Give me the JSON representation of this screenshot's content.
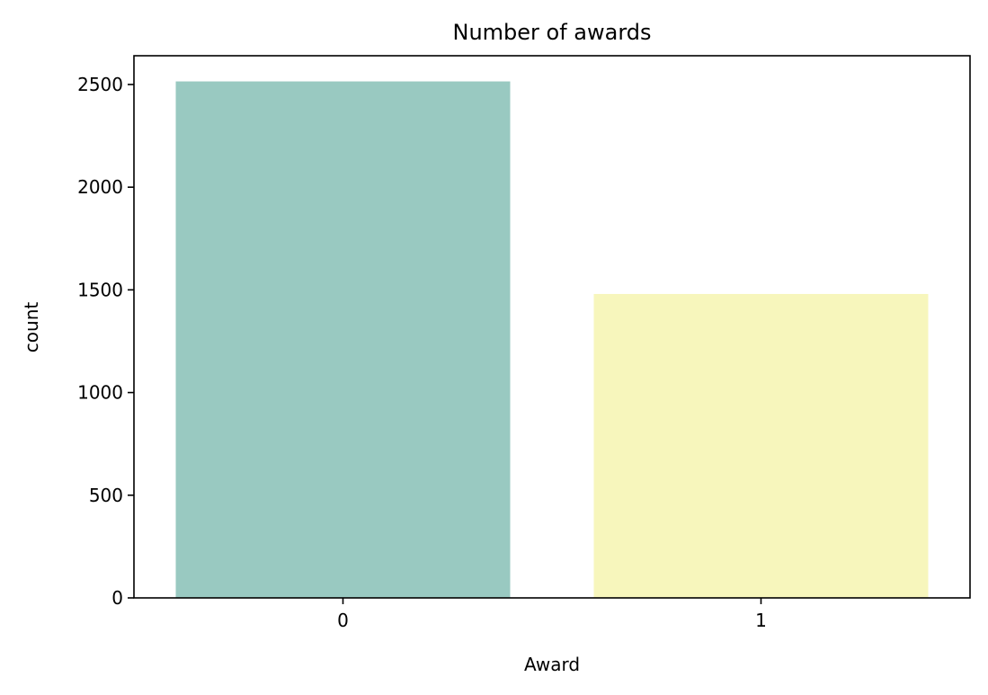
{
  "chart_data": {
    "type": "bar",
    "title": "Number of awards",
    "xlabel": "Award",
    "ylabel": "count",
    "categories": [
      "0",
      "1"
    ],
    "values": [
      2515,
      1480
    ],
    "colors": [
      "#99c9c1",
      "#f7f6bc"
    ],
    "ylim": [
      0,
      2640
    ],
    "yticks": [
      0,
      500,
      1000,
      1500,
      2000,
      2500
    ],
    "grid": false,
    "legend": "none"
  }
}
